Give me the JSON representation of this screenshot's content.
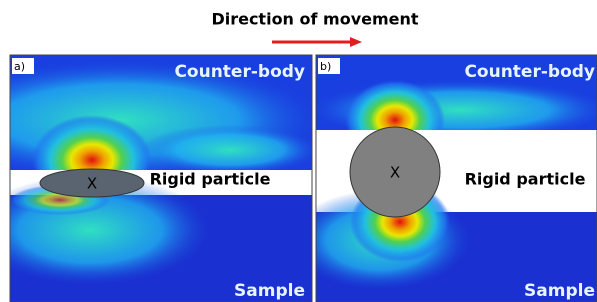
{
  "header": {
    "title": "Direction of movement"
  },
  "panels": [
    {
      "label": "a)",
      "counter_body": "Counter-body",
      "sample": "Sample",
      "particle_mark": "X",
      "particle_label": "Rigid particle"
    },
    {
      "label": "b)",
      "counter_body": "Counter-body",
      "sample": "Sample",
      "particle_mark": "X",
      "particle_label": "Rigid particle"
    }
  ]
}
